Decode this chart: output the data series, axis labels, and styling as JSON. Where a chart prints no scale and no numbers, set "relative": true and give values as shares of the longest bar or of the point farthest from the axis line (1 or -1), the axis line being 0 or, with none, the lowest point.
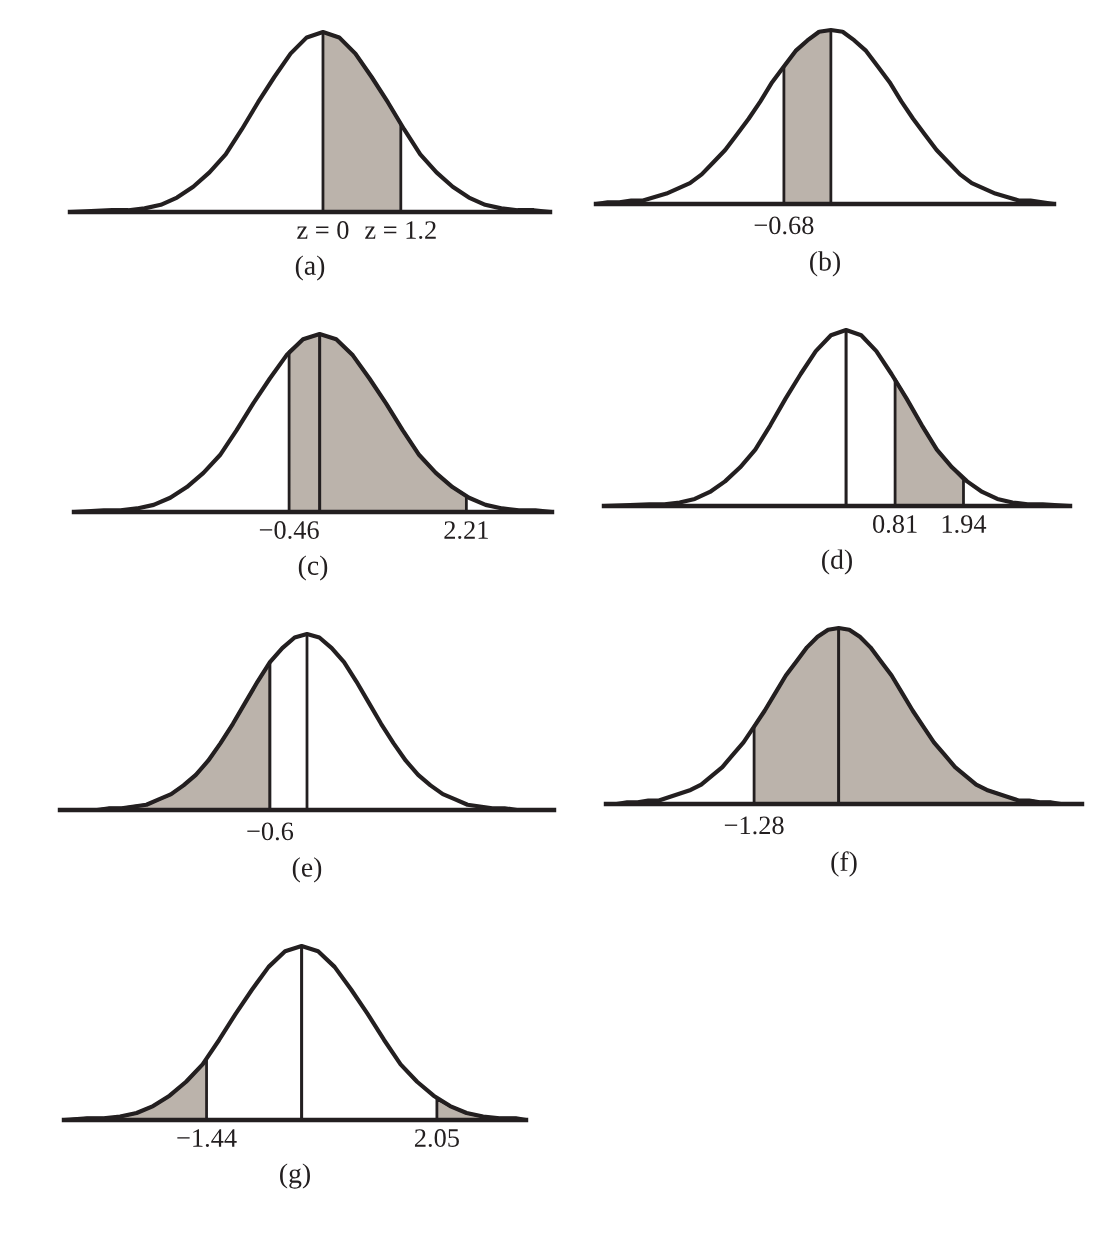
{
  "chart_data": [
    {
      "type": "line",
      "relative": true,
      "tick_labels": "x",
      "xlabel": "(a)",
      "xlim": [
        -3.9,
        3.5
      ],
      "xticks": [
        {
          "value": 0,
          "label": "z = 0"
        },
        {
          "value": 1.2,
          "label": "z = 1.2"
        }
      ],
      "series": [
        {
          "type": "area",
          "color": "#bbb3ab",
          "x": [
            0,
            0.25,
            0.5,
            0.75,
            1,
            1.2
          ],
          "values": [
            1,
            0.97,
            0.88,
            0.75,
            0.61,
            0.49
          ]
        },
        {
          "color": "#231f20",
          "x": [
            -3.9,
            -3.25,
            -3,
            -2.75,
            -2.5,
            -2.25,
            -2,
            -1.75,
            -1.5,
            -1.25,
            -1,
            -0.75,
            -0.5,
            -0.25,
            0,
            0.25,
            0.5,
            0.75,
            1,
            1.25,
            1.5,
            1.75,
            2,
            2.25,
            2.5,
            2.75,
            3,
            3.25,
            3.5
          ],
          "values": [
            0,
            0.01,
            0.01,
            0.02,
            0.04,
            0.08,
            0.14,
            0.22,
            0.32,
            0.46,
            0.61,
            0.75,
            0.88,
            0.97,
            1,
            0.97,
            0.88,
            0.75,
            0.61,
            0.46,
            0.32,
            0.22,
            0.14,
            0.08,
            0.04,
            0.02,
            0.01,
            0.01,
            0
          ]
        }
      ]
    },
    {
      "type": "line",
      "relative": true,
      "xlabel": "(b)",
      "annotations": [
        "−0.68"
      ],
      "categories": [
        null,
        null,
        null,
        null,
        null,
        null,
        null,
        null,
        null,
        null,
        null,
        null,
        null,
        null,
        null,
        null,
        null,
        null,
        null,
        null,
        null,
        null,
        null,
        null,
        null,
        null,
        null,
        null,
        null,
        null,
        null,
        null,
        null,
        null,
        null,
        null,
        null,
        null,
        null,
        null
      ],
      "series": [
        {
          "type": "area",
          "color": "#bbb3ab",
          "values": [
            null,
            null,
            null,
            null,
            null,
            null,
            null,
            null,
            null,
            null,
            null,
            null,
            null,
            null,
            null,
            null,
            0.79,
            0.88,
            0.94,
            0.99,
            1,
            null,
            null,
            null,
            null,
            null,
            null,
            null,
            null,
            null,
            null,
            null,
            null,
            null,
            null,
            null,
            null,
            null,
            null,
            null
          ]
        },
        {
          "color": "#231f20",
          "values": [
            0,
            0.01,
            0.01,
            0.02,
            0.02,
            0.04,
            0.06,
            0.09,
            0.12,
            0.17,
            0.24,
            0.31,
            0.4,
            0.49,
            0.59,
            0.7,
            0.79,
            0.88,
            0.94,
            0.99,
            1,
            0.99,
            0.94,
            0.88,
            0.79,
            0.7,
            0.59,
            0.49,
            0.4,
            0.31,
            0.24,
            0.17,
            0.12,
            0.09,
            0.06,
            0.04,
            0.02,
            0.02,
            0.01,
            0
          ]
        }
      ]
    },
    {
      "type": "line",
      "relative": true,
      "tick_labels": "x",
      "xlabel": "(c)",
      "xlim": [
        -3.7,
        3.5
      ],
      "xticks": [
        {
          "value": -0.46,
          "label": "−0.46"
        },
        2.21
      ],
      "ref_lines": [
        {
          "axis": "x",
          "value": 0,
          "color": "#231f20"
        }
      ],
      "series": [
        {
          "type": "area",
          "color": "#bbb3ab",
          "x": [
            -0.46,
            -0.25,
            0,
            0.25,
            0.5,
            0.75,
            1,
            1.25,
            1.5,
            1.75,
            2,
            2.21
          ],
          "values": [
            0.9,
            0.97,
            1,
            0.97,
            0.88,
            0.75,
            0.61,
            0.46,
            0.32,
            0.22,
            0.14,
            0.09
          ]
        },
        {
          "color": "#231f20",
          "x": [
            -3.7,
            -3.25,
            -3,
            -2.75,
            -2.5,
            -2.25,
            -2,
            -1.75,
            -1.5,
            -1.25,
            -1,
            -0.75,
            -0.5,
            -0.25,
            0,
            0.25,
            0.5,
            0.75,
            1,
            1.25,
            1.5,
            1.75,
            2,
            2.25,
            2.5,
            2.75,
            3,
            3.25,
            3.5
          ],
          "values": [
            0,
            0.01,
            0.01,
            0.02,
            0.04,
            0.08,
            0.14,
            0.22,
            0.32,
            0.46,
            0.61,
            0.75,
            0.88,
            0.97,
            1,
            0.97,
            0.88,
            0.75,
            0.61,
            0.46,
            0.32,
            0.22,
            0.14,
            0.08,
            0.04,
            0.02,
            0.01,
            0.01,
            0
          ]
        }
      ]
    },
    {
      "type": "line",
      "relative": true,
      "tick_labels": "x",
      "xlabel": "(d)",
      "xlim": [
        -4,
        3.7
      ],
      "xticks": [
        0.81,
        1.94
      ],
      "ref_lines": [
        {
          "axis": "x",
          "value": 0,
          "color": "#231f20"
        }
      ],
      "series": [
        {
          "type": "area",
          "color": "#bbb3ab",
          "x": [
            0.81,
            1,
            1.25,
            1.5,
            1.75,
            1.94
          ],
          "values": [
            0.72,
            0.61,
            0.46,
            0.32,
            0.22,
            0.15
          ]
        },
        {
          "color": "#231f20",
          "x": [
            -4,
            -3.25,
            -3,
            -2.75,
            -2.5,
            -2.25,
            -2,
            -1.75,
            -1.5,
            -1.25,
            -1,
            -0.75,
            -0.5,
            -0.25,
            0,
            0.25,
            0.5,
            0.75,
            1,
            1.25,
            1.5,
            1.75,
            2,
            2.25,
            2.5,
            2.75,
            3,
            3.25,
            3.7
          ],
          "values": [
            0,
            0.01,
            0.01,
            0.02,
            0.04,
            0.08,
            0.14,
            0.22,
            0.32,
            0.46,
            0.61,
            0.75,
            0.88,
            0.97,
            1,
            0.97,
            0.88,
            0.75,
            0.61,
            0.46,
            0.32,
            0.22,
            0.14,
            0.08,
            0.04,
            0.02,
            0.01,
            0.01,
            0
          ]
        }
      ]
    },
    {
      "type": "line",
      "relative": true,
      "xlabel": "(e)",
      "annotations": [
        "−0.6"
      ],
      "categories": [
        null,
        null,
        null,
        null,
        null,
        null,
        null,
        null,
        null,
        null,
        null,
        null,
        null,
        null,
        null,
        null,
        null,
        null,
        null,
        null,
        null,
        null,
        null,
        null,
        null,
        null,
        null,
        null,
        null,
        null,
        null,
        null,
        null,
        null,
        null,
        null,
        null,
        null,
        null,
        null,
        null
      ],
      "series": [
        {
          "type": "area",
          "color": "#bbb3ab",
          "values": [
            0,
            0,
            0,
            0,
            0.01,
            0.01,
            0.02,
            0.03,
            0.06,
            0.09,
            0.14,
            0.2,
            0.28,
            0.38,
            0.49,
            0.61,
            0.73,
            0.84,
            null,
            null,
            null,
            null,
            null,
            null,
            null,
            null,
            null,
            null,
            null,
            null,
            null,
            null,
            null,
            null,
            null,
            null,
            null,
            null,
            null,
            null,
            null
          ]
        },
        {
          "type": "area",
          "color": "#ffffff",
          "values": [
            null,
            null,
            null,
            null,
            null,
            null,
            null,
            null,
            null,
            null,
            null,
            null,
            null,
            null,
            null,
            null,
            null,
            0.84,
            0.92,
            0.98,
            1,
            null,
            null,
            null,
            null,
            null,
            null,
            null,
            null,
            null,
            null,
            null,
            null,
            null,
            null,
            null,
            null,
            null,
            null,
            null,
            null
          ]
        },
        {
          "color": "#231f20",
          "values": [
            0,
            0,
            0,
            0,
            0.01,
            0.01,
            0.02,
            0.03,
            0.06,
            0.09,
            0.14,
            0.2,
            0.28,
            0.38,
            0.49,
            0.61,
            0.73,
            0.84,
            0.92,
            0.98,
            1,
            0.98,
            0.92,
            0.84,
            0.73,
            0.61,
            0.49,
            0.38,
            0.28,
            0.2,
            0.14,
            0.09,
            0.06,
            0.03,
            0.02,
            0.01,
            0.01,
            0,
            0,
            0,
            0
          ]
        }
      ]
    },
    {
      "type": "line",
      "relative": true,
      "xlabel": "(f)",
      "annotations": [
        "−1.28"
      ],
      "categories": [
        null,
        null,
        null,
        null,
        null,
        null,
        null,
        null,
        null,
        null,
        null,
        null,
        null,
        null,
        null,
        null,
        null,
        null,
        null,
        null,
        null,
        null,
        null,
        null,
        null,
        null,
        null,
        null,
        null,
        null,
        null,
        null,
        null,
        null,
        null,
        null,
        null,
        null,
        null,
        null,
        null,
        null,
        null,
        null,
        null,
        null
      ],
      "series": [
        {
          "type": "area",
          "color": "#bbb3ab",
          "values": [
            null,
            null,
            null,
            null,
            null,
            null,
            null,
            null,
            null,
            null,
            null,
            null,
            null,
            null,
            0.44,
            0.53,
            0.63,
            0.73,
            0.81,
            0.89,
            0.95,
            0.99,
            1,
            null,
            null,
            null,
            null,
            null,
            null,
            null,
            null,
            null,
            null,
            null,
            null,
            null,
            null,
            null,
            null,
            null,
            null,
            null,
            null,
            null,
            null,
            null
          ]
        },
        {
          "type": "area",
          "color": "#bbb3ab",
          "values": [
            null,
            null,
            null,
            null,
            null,
            null,
            null,
            null,
            null,
            null,
            null,
            null,
            null,
            null,
            null,
            null,
            null,
            null,
            null,
            null,
            null,
            null,
            1,
            0.99,
            0.95,
            0.89,
            0.81,
            0.73,
            0.63,
            0.53,
            0.44,
            0.35,
            0.28,
            0.21,
            0.16,
            0.11,
            0.08,
            0.06,
            0.04,
            0.02,
            0.02,
            0.01,
            0.01,
            0,
            0,
            0
          ]
        },
        {
          "color": "#231f20",
          "values": [
            0,
            0,
            0.01,
            0.01,
            0.02,
            0.02,
            0.04,
            0.06,
            0.08,
            0.11,
            0.16,
            0.21,
            0.28,
            0.35,
            0.44,
            0.53,
            0.63,
            0.73,
            0.81,
            0.89,
            0.95,
            0.99,
            1,
            0.99,
            0.95,
            0.89,
            0.81,
            0.73,
            0.63,
            0.53,
            0.44,
            0.35,
            0.28,
            0.21,
            0.16,
            0.11,
            0.08,
            0.06,
            0.04,
            0.02,
            0.02,
            0.01,
            0.01,
            0,
            0,
            0
          ]
        }
      ]
    },
    {
      "type": "line",
      "relative": true,
      "tick_labels": "x",
      "xlabel": "(g)",
      "xlim": [
        -3.6,
        3.4
      ],
      "xticks": [
        {
          "value": -1.44,
          "label": "−1.44"
        },
        2.05
      ],
      "ref_lines": [
        {
          "axis": "x",
          "value": 0,
          "color": "#231f20"
        }
      ],
      "series": [
        {
          "type": "area",
          "color": "#bbb3ab",
          "x": [
            -3.6,
            -3.25,
            -3,
            -2.75,
            -2.5,
            -2.25,
            -2,
            -1.75,
            -1.5,
            -1.44
          ],
          "values": [
            0,
            0.01,
            0.01,
            0.02,
            0.04,
            0.08,
            0.14,
            0.22,
            0.32,
            0.35
          ]
        },
        {
          "type": "area",
          "color": "#bbb3ab",
          "x": [
            2.05,
            2.25,
            2.5,
            2.75,
            3,
            3.25,
            3.4
          ],
          "values": [
            0.12,
            0.08,
            0.04,
            0.02,
            0.01,
            0.01,
            0
          ]
        },
        {
          "color": "#231f20",
          "x": [
            -3.6,
            -3.25,
            -3,
            -2.75,
            -2.5,
            -2.25,
            -2,
            -1.75,
            -1.5,
            -1.25,
            -1,
            -0.75,
            -0.5,
            -0.25,
            0,
            0.25,
            0.5,
            0.75,
            1,
            1.25,
            1.5,
            1.75,
            2,
            2.25,
            2.5,
            2.75,
            3,
            3.25,
            3.4
          ],
          "values": [
            0,
            0.01,
            0.01,
            0.02,
            0.04,
            0.08,
            0.14,
            0.22,
            0.32,
            0.46,
            0.61,
            0.75,
            0.88,
            0.97,
            1,
            0.97,
            0.88,
            0.75,
            0.61,
            0.46,
            0.32,
            0.22,
            0.14,
            0.08,
            0.04,
            0.02,
            0.01,
            0.01,
            0
          ]
        }
      ]
    }
  ]
}
